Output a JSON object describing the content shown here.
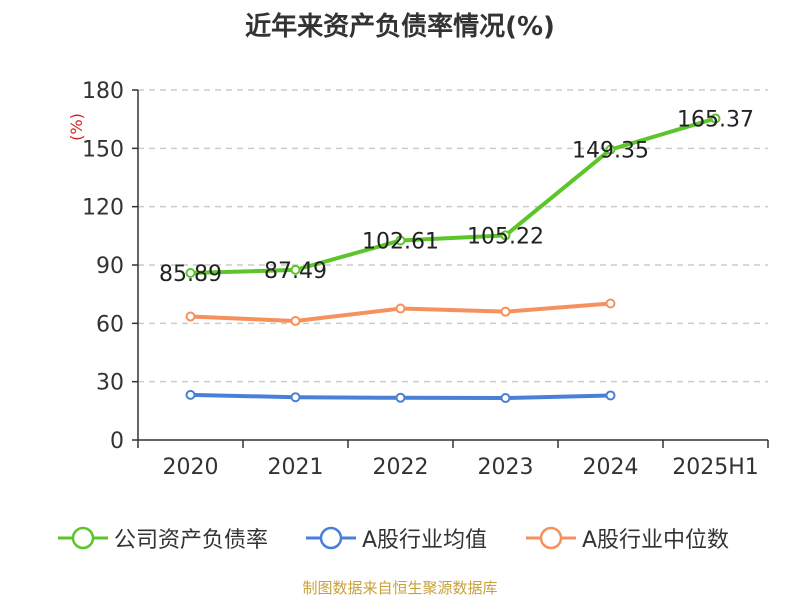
{
  "chart_data": {
    "type": "line",
    "title": "近年来资产负债率情况(%)",
    "ylabel": "(%)",
    "xlabel": "",
    "categories": [
      "2020",
      "2021",
      "2022",
      "2023",
      "2024",
      "2025H1"
    ],
    "ylim": [
      0,
      180
    ],
    "yticks": [
      0,
      30,
      60,
      90,
      120,
      150,
      180
    ],
    "grid": true,
    "legend_position": "bottom",
    "series": [
      {
        "name": "公司资产负债率",
        "color": "#5cc52a",
        "values": [
          85.89,
          87.49,
          102.61,
          105.22,
          149.35,
          165.37
        ],
        "data_labels": [
          "85.89",
          "87.49",
          "102.61",
          "105.22",
          "149.35",
          "165.37"
        ]
      },
      {
        "name": "A股行业均值",
        "color": "#4a7fd8",
        "values": [
          23.2,
          22.0,
          21.7,
          21.6,
          22.9,
          null
        ]
      },
      {
        "name": "A股行业中位数",
        "color": "#f6915e",
        "values": [
          63.5,
          61.2,
          67.6,
          66.0,
          70.2,
          null
        ]
      }
    ]
  },
  "source": "制图数据来自恒生聚源数据库"
}
